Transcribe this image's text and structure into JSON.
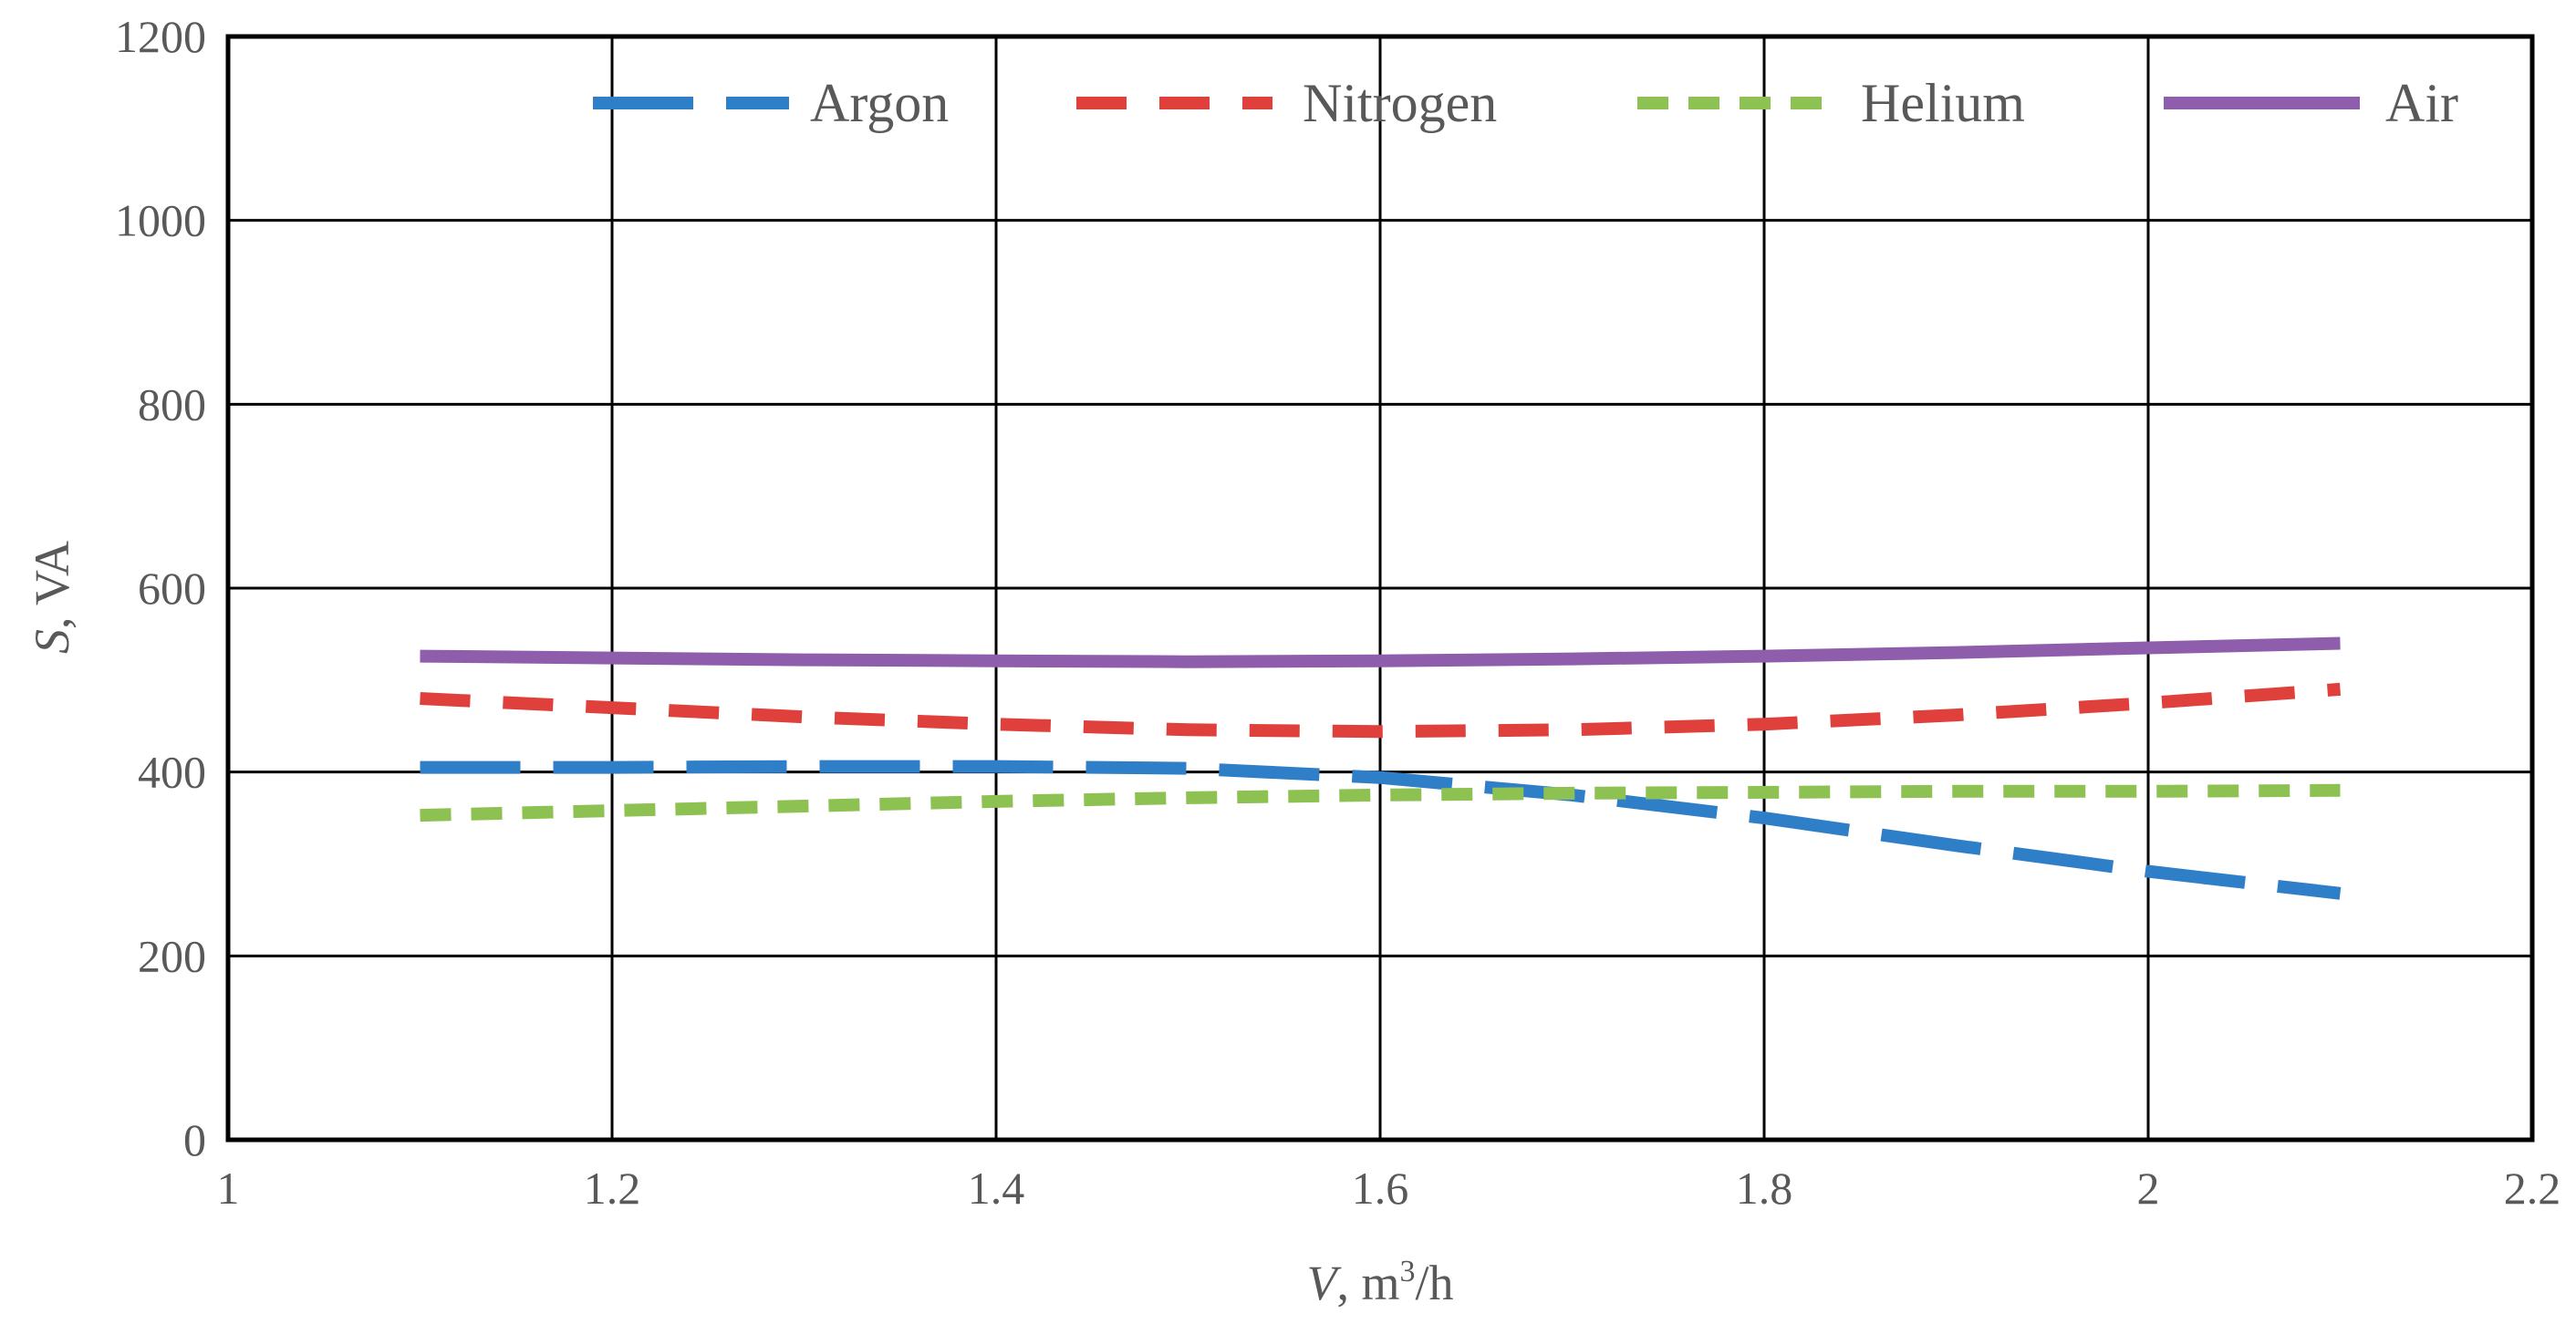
{
  "chart_data": {
    "type": "line",
    "title": "",
    "xlabel": {
      "italic": "V",
      "rest": ", m",
      "sup": "3",
      "tail": "/h"
    },
    "ylabel": {
      "italic": "S",
      "rest": ", VA"
    },
    "xlim": [
      1,
      2.2
    ],
    "ylim": [
      0,
      1200
    ],
    "xticks": [
      1,
      1.2,
      1.4,
      1.6,
      1.8,
      2,
      2.2
    ],
    "xtick_labels": [
      "1",
      "1.2",
      "1.4",
      "1.6",
      "1.8",
      "2",
      "2.2"
    ],
    "yticks": [
      0,
      200,
      400,
      600,
      800,
      1000,
      1200
    ],
    "ytick_labels": [
      "0",
      "200",
      "400",
      "600",
      "800",
      "1000",
      "1200"
    ],
    "grid": true,
    "legend_position": "top",
    "x": [
      1.1,
      1.2,
      1.3,
      1.4,
      1.5,
      1.6,
      1.7,
      1.8,
      1.9,
      2.0,
      2.1
    ],
    "series": [
      {
        "name": "Argon",
        "color": "#2f7fc8",
        "style": "long-dash",
        "values": [
          405,
          405,
          406,
          406,
          404,
          394,
          375,
          350,
          320,
          292,
          268
        ]
      },
      {
        "name": "Nitrogen",
        "color": "#e0403c",
        "style": "dash",
        "values": [
          480,
          470,
          460,
          452,
          446,
          444,
          446,
          452,
          462,
          475,
          490
        ]
      },
      {
        "name": "Helium",
        "color": "#8dc152",
        "style": "short-dash",
        "values": [
          353,
          358,
          363,
          368,
          372,
          375,
          377,
          378,
          379,
          379,
          380
        ]
      },
      {
        "name": "Air",
        "color": "#8e5ead",
        "style": "solid",
        "values": [
          526,
          524,
          522,
          521,
          520,
          521,
          523,
          526,
          530,
          535,
          540
        ]
      }
    ]
  }
}
